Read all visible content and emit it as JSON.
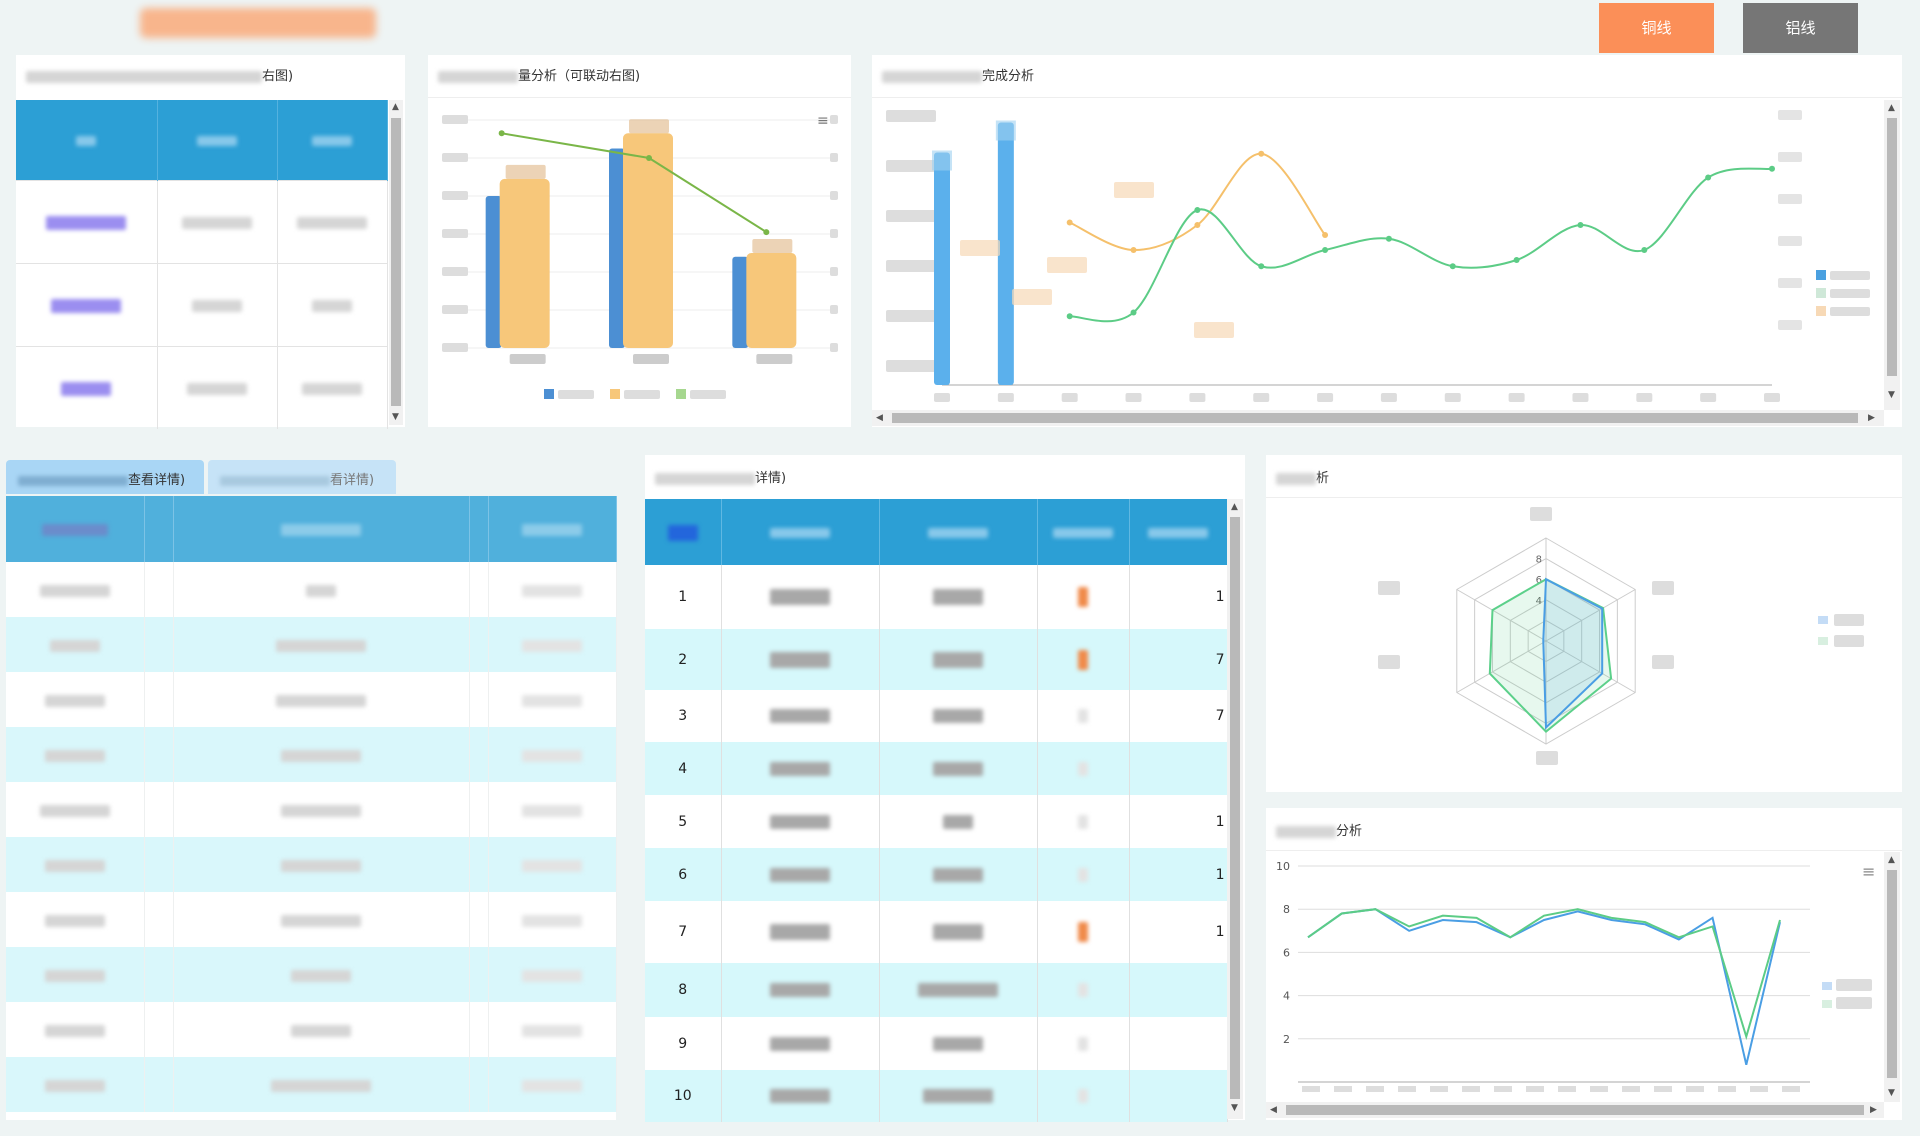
{
  "header": {
    "buttons": [
      {
        "label": "铜线",
        "color": "#fb8f58"
      },
      {
        "label": "铝线",
        "color": "#767676"
      }
    ]
  },
  "panel1": {
    "title_suffix": "右图)"
  },
  "panel2": {
    "title_suffix": "量分析（可联动右图)"
  },
  "panel3": {
    "title_suffix": "完成分析"
  },
  "tabs": [
    {
      "label_suffix": "查看详情)"
    },
    {
      "label_suffix": "看详情)"
    }
  ],
  "panel4": {
    "title_suffix": "详情)",
    "rows": [
      {
        "num": "1",
        "tail": "1"
      },
      {
        "num": "2",
        "tail": "7"
      },
      {
        "num": "3",
        "tail": "7"
      },
      {
        "num": "4",
        "tail": ""
      },
      {
        "num": "5",
        "tail": "1"
      },
      {
        "num": "6",
        "tail": "1"
      },
      {
        "num": "7",
        "tail": "1"
      },
      {
        "num": "8",
        "tail": ""
      },
      {
        "num": "9",
        "tail": ""
      },
      {
        "num": "10",
        "tail": ""
      }
    ]
  },
  "panel5": {
    "title_suffix": "析"
  },
  "panel6": {
    "title_suffix": "分析"
  },
  "colors": {
    "accent": "#2c9fd5",
    "orange": "#f7c77a",
    "green": "#6acb8a",
    "blue": "#5ba2dc",
    "stripe": "#d6f8fb"
  },
  "chart_data": [
    {
      "type": "bar",
      "categories": [
        "",
        "",
        ""
      ],
      "series": [
        {
          "name": "",
          "type": "bar",
          "values": [
            80,
            105,
            48
          ],
          "color": "#4c8fd3"
        },
        {
          "name": "",
          "type": "bar",
          "values": [
            89,
            113,
            50
          ],
          "color": "#f7c77a"
        },
        {
          "name": "",
          "type": "line",
          "values": [
            113,
            100,
            61
          ],
          "color": "#7ab648"
        }
      ]
    },
    {
      "type": "line",
      "points": 14,
      "series": [
        {
          "name": "",
          "type": "bar",
          "values": [
            186,
            210
          ],
          "color": "#5bb0ec"
        },
        {
          "name": "",
          "type": "line",
          "values": [
            null,
            null,
            130,
            108,
            128,
            185,
            120,
            null,
            null,
            null,
            null,
            null,
            null,
            null
          ],
          "color": "#f5c06b"
        },
        {
          "name": "",
          "type": "line",
          "values": [
            null,
            null,
            55,
            58,
            140,
            95,
            108,
            117,
            95,
            100,
            128,
            108,
            166,
            173
          ],
          "color": "#5ccc86"
        }
      ]
    },
    {
      "type": "radar",
      "ticks": [
        "4",
        "6",
        "8"
      ],
      "max": 10,
      "series": [
        {
          "name": "",
          "values": [
            6,
            6.4,
            7.3,
            8.8,
            6.3,
            6
          ],
          "color": "#5cd08a"
        },
        {
          "name": "",
          "values": [
            6,
            6.3,
            6.3,
            8.4,
            0.3,
            0.3
          ],
          "color": "#4a9ee4"
        }
      ]
    },
    {
      "type": "line",
      "ylim": [
        0,
        10
      ],
      "yticks": [
        "10",
        "8",
        "6",
        "4",
        "2"
      ],
      "series": [
        {
          "name": "",
          "values": [
            6.7,
            7.8,
            8,
            7,
            7.5,
            7.4,
            6.7,
            7.5,
            7.9,
            7.5,
            7.3,
            6.6,
            7.6,
            0.8,
            7.4
          ],
          "color": "#4a9ee4"
        },
        {
          "name": "",
          "values": [
            6.7,
            7.8,
            8,
            7.2,
            7.7,
            7.6,
            6.7,
            7.7,
            8,
            7.6,
            7.4,
            6.7,
            7.2,
            2.1,
            7.5
          ],
          "color": "#5ccc86"
        }
      ]
    }
  ]
}
